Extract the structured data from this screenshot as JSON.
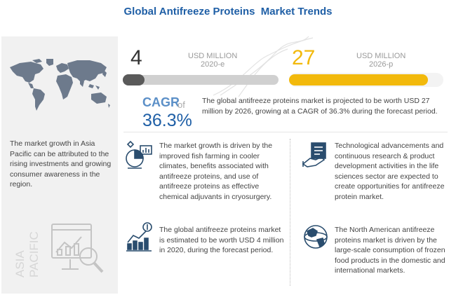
{
  "title": "Global Antifreeze Proteins  Market Trends",
  "stats": {
    "left": {
      "value": "4",
      "unit": "USD MILLION",
      "year": "2020-e",
      "fill_fraction": 0.14
    },
    "right": {
      "value": "27",
      "unit": "USD MILLION",
      "year": "2026-p",
      "fill_fraction": 0.9
    }
  },
  "cagr": {
    "label": "CAGR",
    "of": "of",
    "value": "36.3%",
    "text": "The global antifreeze proteins market is projected to be worth USD 27 million by 2026, growing at a CAGR of 36.3% during the forecast period."
  },
  "left_panel": {
    "text": "The market growth in Asia Pacific can be attributed to the rising investments and growing consumer awareness in the region.",
    "region_line1": "ASIA",
    "region_line2": "PACIFIC"
  },
  "facts": [
    {
      "icon": "fish-farming-analytics-icon",
      "text": "The market growth is driven by the improved fish farming in cooler climates, benefits associated with antifreeze proteins, and use of antifreeze proteins as effective chemical adjuvants in cryosurgery."
    },
    {
      "icon": "research-development-icon",
      "text": "Technological advancements and continuous research & product development activities in the life sciences sector are expected to create opportunities for antifreeze protein market."
    },
    {
      "icon": "market-value-chart-icon",
      "text": "The global antifreeze proteins market is estimated to be worth USD 4 million in 2020, during the forecast period."
    },
    {
      "icon": "globe-north-america-icon",
      "text": "The North American antifreeze proteins market is driven by the large-scale consumption of frozen food products in the domestic and international markets."
    }
  ],
  "colors": {
    "title": "#1f5fa6",
    "accent_yellow": "#f2b90c",
    "cagr_blue": "#1f5fa6",
    "panel_gray": "#f1f1f1"
  }
}
